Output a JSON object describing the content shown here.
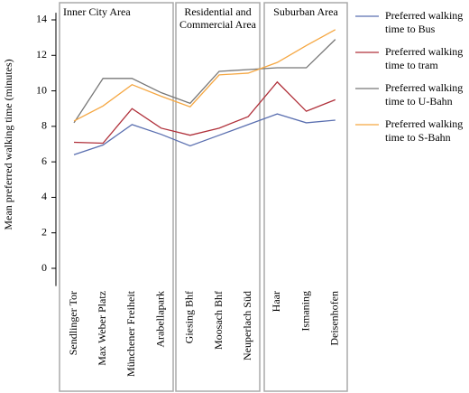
{
  "chart_data": {
    "type": "line",
    "y_label": "Mean preferred walking time (minutes)",
    "categories": [
      "Sendlinger Tor",
      "Max Weber Platz",
      "Münchener Freiheit",
      "Arabellapark",
      "Giesing Bhf",
      "Moosach Bhf",
      "Neuperlach Süd",
      "Haar",
      "Ismaning",
      "Deisenhofen"
    ],
    "groups": [
      "Inner City Area",
      "Residential and Commercial Area",
      "Suburban Area"
    ],
    "series": [
      {
        "name": "Preferred walking time to Bus",
        "color": "#5a6fb0",
        "values": [
          6.4,
          6.95,
          8.1,
          7.55,
          6.9,
          7.5,
          8.1,
          8.7,
          8.2,
          8.35
        ]
      },
      {
        "name": "Preferred walking time to tram",
        "color": "#b0303a",
        "values": [
          7.1,
          7.05,
          9.0,
          7.9,
          7.5,
          7.9,
          8.55,
          10.5,
          8.85,
          9.5
        ]
      },
      {
        "name": "Preferred walking time to U-Bahn",
        "color": "#777777",
        "values": [
          8.2,
          10.7,
          10.7,
          9.9,
          9.3,
          11.1,
          11.2,
          11.3,
          11.3,
          12.9
        ]
      },
      {
        "name": "Preferred walking time to S-Bahn",
        "color": "#f5a742",
        "values": [
          8.3,
          9.15,
          10.35,
          9.7,
          9.1,
          10.9,
          11.0,
          11.6,
          12.55,
          13.45
        ]
      }
    ],
    "ylim": [
      -1,
      14.4
    ],
    "yticks": [
      0,
      2,
      4,
      6,
      8,
      10,
      12,
      14
    ]
  }
}
